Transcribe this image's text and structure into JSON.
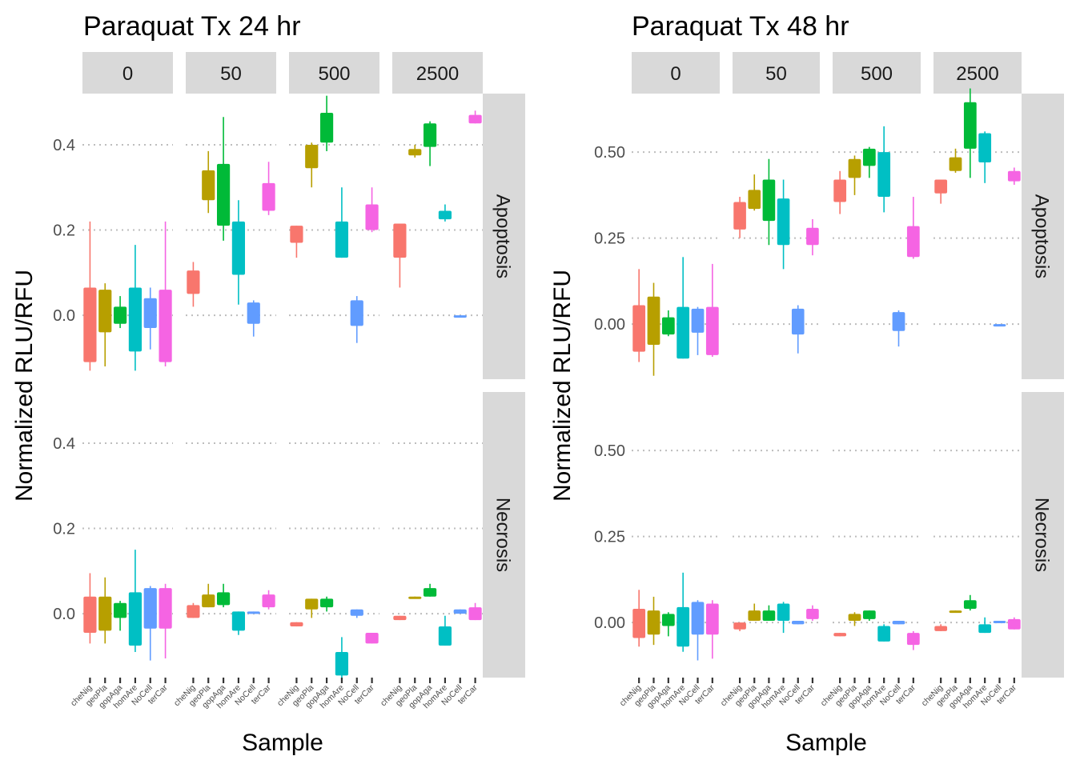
{
  "figure": {
    "ylabel": "Normalized RLU/RFU",
    "xlabel": "Sample",
    "samples": [
      "cheNig",
      "geoPla",
      "gopAga",
      "homAre",
      "NoCell",
      "terCar"
    ],
    "colors": {
      "cheNig": "#F8766D",
      "geoPla": "#B79F00",
      "gopAga": "#00BA38",
      "homAre": "#00BFC4",
      "NoCell": "#619CFF",
      "terCar": "#F564E3"
    },
    "strip_fill": "#D9D9D9",
    "grid_style": "dotted major y gridlines",
    "legend": "none"
  },
  "chart_data": [
    {
      "type": "boxplot",
      "title": "Paraquat Tx 24 hr",
      "facet_cols": [
        "0",
        "50",
        "500",
        "2500"
      ],
      "facet_rows": [
        "Apoptosis",
        "Necrosis"
      ],
      "ylim": [
        -0.15,
        0.52
      ],
      "yticks": [
        0.0,
        0.2,
        0.4
      ],
      "ytick_labels": [
        "0.0",
        "0.2",
        "0.4"
      ],
      "panels": {
        "Apoptosis": {
          "0": [
            {
              "sample": "cheNig",
              "lo": -0.13,
              "q1": -0.11,
              "q3": 0.065,
              "hi": 0.22
            },
            {
              "sample": "geoPla",
              "lo": -0.12,
              "q1": -0.04,
              "q3": 0.06,
              "hi": 0.075
            },
            {
              "sample": "gopAga",
              "lo": -0.03,
              "q1": -0.02,
              "q3": 0.02,
              "hi": 0.045
            },
            {
              "sample": "homAre",
              "lo": -0.13,
              "q1": -0.085,
              "q3": 0.065,
              "hi": 0.165
            },
            {
              "sample": "NoCell",
              "lo": -0.08,
              "q1": -0.03,
              "q3": 0.04,
              "hi": 0.065
            },
            {
              "sample": "terCar",
              "lo": -0.12,
              "q1": -0.11,
              "q3": 0.06,
              "hi": 0.22
            }
          ],
          "50": [
            {
              "sample": "cheNig",
              "lo": 0.02,
              "q1": 0.05,
              "q3": 0.105,
              "hi": 0.125
            },
            {
              "sample": "geoPla",
              "lo": 0.24,
              "q1": 0.27,
              "q3": 0.34,
              "hi": 0.385
            },
            {
              "sample": "gopAga",
              "lo": 0.175,
              "q1": 0.21,
              "q3": 0.355,
              "hi": 0.465
            },
            {
              "sample": "homAre",
              "lo": 0.025,
              "q1": 0.095,
              "q3": 0.22,
              "hi": 0.27
            },
            {
              "sample": "NoCell",
              "lo": -0.05,
              "q1": -0.02,
              "q3": 0.03,
              "hi": 0.035
            },
            {
              "sample": "terCar",
              "lo": 0.235,
              "q1": 0.245,
              "q3": 0.31,
              "hi": 0.36
            }
          ],
          "500": [
            {
              "sample": "cheNig",
              "lo": 0.135,
              "q1": 0.17,
              "q3": 0.21,
              "hi": 0.21
            },
            {
              "sample": "geoPla",
              "lo": 0.3,
              "q1": 0.345,
              "q3": 0.4,
              "hi": 0.405
            },
            {
              "sample": "gopAga",
              "lo": 0.385,
              "q1": 0.405,
              "q3": 0.475,
              "hi": 0.515
            },
            {
              "sample": "homAre",
              "lo": 0.135,
              "q1": 0.135,
              "q3": 0.22,
              "hi": 0.3
            },
            {
              "sample": "NoCell",
              "lo": -0.065,
              "q1": -0.025,
              "q3": 0.035,
              "hi": 0.045
            },
            {
              "sample": "terCar",
              "lo": 0.195,
              "q1": 0.2,
              "q3": 0.26,
              "hi": 0.3
            }
          ],
          "2500": [
            {
              "sample": "cheNig",
              "lo": 0.065,
              "q1": 0.135,
              "q3": 0.215,
              "hi": 0.215
            },
            {
              "sample": "geoPla",
              "lo": 0.37,
              "q1": 0.375,
              "q3": 0.39,
              "hi": 0.4
            },
            {
              "sample": "gopAga",
              "lo": 0.35,
              "q1": 0.395,
              "q3": 0.45,
              "hi": 0.455
            },
            {
              "sample": "homAre",
              "lo": 0.22,
              "q1": 0.225,
              "q3": 0.245,
              "hi": 0.26
            },
            {
              "sample": "NoCell",
              "lo": -0.005,
              "q1": -0.005,
              "q3": 0.0,
              "hi": 0.0
            },
            {
              "sample": "terCar",
              "lo": 0.45,
              "q1": 0.45,
              "q3": 0.47,
              "hi": 0.48
            }
          ]
        },
        "Necrosis": {
          "0": [
            {
              "sample": "cheNig",
              "lo": -0.07,
              "q1": -0.045,
              "q3": 0.04,
              "hi": 0.095
            },
            {
              "sample": "geoPla",
              "lo": -0.07,
              "q1": -0.04,
              "q3": 0.04,
              "hi": 0.085
            },
            {
              "sample": "gopAga",
              "lo": -0.04,
              "q1": -0.01,
              "q3": 0.025,
              "hi": 0.03
            },
            {
              "sample": "homAre",
              "lo": -0.09,
              "q1": -0.075,
              "q3": 0.05,
              "hi": 0.15
            },
            {
              "sample": "NoCell",
              "lo": -0.11,
              "q1": -0.035,
              "q3": 0.06,
              "hi": 0.065
            },
            {
              "sample": "terCar",
              "lo": -0.105,
              "q1": -0.035,
              "q3": 0.06,
              "hi": 0.07
            }
          ],
          "50": [
            {
              "sample": "cheNig",
              "lo": -0.01,
              "q1": -0.01,
              "q3": 0.02,
              "hi": 0.025
            },
            {
              "sample": "geoPla",
              "lo": 0.015,
              "q1": 0.015,
              "q3": 0.045,
              "hi": 0.07
            },
            {
              "sample": "gopAga",
              "lo": 0.015,
              "q1": 0.02,
              "q3": 0.05,
              "hi": 0.07
            },
            {
              "sample": "homAre",
              "lo": -0.05,
              "q1": -0.04,
              "q3": 0.005,
              "hi": 0.005
            },
            {
              "sample": "NoCell",
              "lo": 0.0,
              "q1": 0.0,
              "q3": 0.005,
              "hi": 0.005
            },
            {
              "sample": "terCar",
              "lo": 0.01,
              "q1": 0.015,
              "q3": 0.045,
              "hi": 0.055
            }
          ],
          "500": [
            {
              "sample": "cheNig",
              "lo": -0.03,
              "q1": -0.03,
              "q3": -0.02,
              "hi": -0.02
            },
            {
              "sample": "geoPla",
              "lo": -0.01,
              "q1": 0.01,
              "q3": 0.035,
              "hi": 0.035
            },
            {
              "sample": "gopAga",
              "lo": 0.005,
              "q1": 0.015,
              "q3": 0.035,
              "hi": 0.04
            },
            {
              "sample": "homAre",
              "lo": -0.15,
              "q1": -0.145,
              "q3": -0.09,
              "hi": -0.055
            },
            {
              "sample": "NoCell",
              "lo": -0.01,
              "q1": -0.005,
              "q3": 0.01,
              "hi": 0.01
            },
            {
              "sample": "terCar",
              "lo": -0.07,
              "q1": -0.07,
              "q3": -0.045,
              "hi": -0.045
            }
          ],
          "2500": [
            {
              "sample": "cheNig",
              "lo": -0.015,
              "q1": -0.015,
              "q3": -0.005,
              "hi": -0.005
            },
            {
              "sample": "geoPla",
              "lo": 0.035,
              "q1": 0.035,
              "q3": 0.04,
              "hi": 0.04
            },
            {
              "sample": "gopAga",
              "lo": 0.04,
              "q1": 0.04,
              "q3": 0.06,
              "hi": 0.07
            },
            {
              "sample": "homAre",
              "lo": -0.075,
              "q1": -0.075,
              "q3": -0.03,
              "hi": -0.005
            },
            {
              "sample": "NoCell",
              "lo": 0.0,
              "q1": 0.0,
              "q3": 0.01,
              "hi": 0.01
            },
            {
              "sample": "terCar",
              "lo": -0.015,
              "q1": -0.015,
              "q3": 0.015,
              "hi": 0.025
            }
          ]
        }
      }
    },
    {
      "type": "boxplot",
      "title": "Paraquat Tx 48 hr",
      "facet_cols": [
        "0",
        "50",
        "500",
        "2500"
      ],
      "facet_rows": [
        "Apoptosis",
        "Necrosis"
      ],
      "ylim": [
        -0.16,
        0.67
      ],
      "yticks": [
        0.0,
        0.25,
        0.5
      ],
      "ytick_labels": [
        "0.00",
        "0.25",
        "0.50"
      ],
      "panels": {
        "Apoptosis": {
          "0": [
            {
              "sample": "cheNig",
              "lo": -0.11,
              "q1": -0.08,
              "q3": 0.055,
              "hi": 0.16
            },
            {
              "sample": "geoPla",
              "lo": -0.15,
              "q1": -0.06,
              "q3": 0.08,
              "hi": 0.12
            },
            {
              "sample": "gopAga",
              "lo": -0.035,
              "q1": -0.03,
              "q3": 0.02,
              "hi": 0.04
            },
            {
              "sample": "homAre",
              "lo": -0.1,
              "q1": -0.1,
              "q3": 0.05,
              "hi": 0.195
            },
            {
              "sample": "NoCell",
              "lo": -0.09,
              "q1": -0.025,
              "q3": 0.045,
              "hi": 0.05
            },
            {
              "sample": "terCar",
              "lo": -0.095,
              "q1": -0.09,
              "q3": 0.05,
              "hi": 0.175
            }
          ],
          "50": [
            {
              "sample": "cheNig",
              "lo": 0.25,
              "q1": 0.275,
              "q3": 0.355,
              "hi": 0.37
            },
            {
              "sample": "geoPla",
              "lo": 0.33,
              "q1": 0.335,
              "q3": 0.39,
              "hi": 0.435
            },
            {
              "sample": "gopAga",
              "lo": 0.23,
              "q1": 0.3,
              "q3": 0.42,
              "hi": 0.48
            },
            {
              "sample": "homAre",
              "lo": 0.16,
              "q1": 0.23,
              "q3": 0.365,
              "hi": 0.42
            },
            {
              "sample": "NoCell",
              "lo": -0.085,
              "q1": -0.03,
              "q3": 0.045,
              "hi": 0.055
            },
            {
              "sample": "terCar",
              "lo": 0.2,
              "q1": 0.23,
              "q3": 0.28,
              "hi": 0.305
            }
          ],
          "500": [
            {
              "sample": "cheNig",
              "lo": 0.32,
              "q1": 0.355,
              "q3": 0.42,
              "hi": 0.445
            },
            {
              "sample": "geoPla",
              "lo": 0.375,
              "q1": 0.425,
              "q3": 0.48,
              "hi": 0.49
            },
            {
              "sample": "gopAga",
              "lo": 0.425,
              "q1": 0.46,
              "q3": 0.51,
              "hi": 0.515
            },
            {
              "sample": "homAre",
              "lo": 0.325,
              "q1": 0.37,
              "q3": 0.5,
              "hi": 0.575
            },
            {
              "sample": "NoCell",
              "lo": -0.065,
              "q1": -0.02,
              "q3": 0.035,
              "hi": 0.04
            },
            {
              "sample": "terCar",
              "lo": 0.19,
              "q1": 0.195,
              "q3": 0.285,
              "hi": 0.37
            }
          ],
          "2500": [
            {
              "sample": "cheNig",
              "lo": 0.35,
              "q1": 0.38,
              "q3": 0.42,
              "hi": 0.42
            },
            {
              "sample": "geoPla",
              "lo": 0.44,
              "q1": 0.445,
              "q3": 0.485,
              "hi": 0.51
            },
            {
              "sample": "gopAga",
              "lo": 0.425,
              "q1": 0.51,
              "q3": 0.645,
              "hi": 0.685
            },
            {
              "sample": "homAre",
              "lo": 0.41,
              "q1": 0.47,
              "q3": 0.555,
              "hi": 0.56
            },
            {
              "sample": "NoCell",
              "lo": -0.005,
              "q1": -0.005,
              "q3": 0.0,
              "hi": 0.0
            },
            {
              "sample": "terCar",
              "lo": 0.405,
              "q1": 0.415,
              "q3": 0.445,
              "hi": 0.455
            }
          ]
        },
        "Necrosis": {
          "0": [
            {
              "sample": "cheNig",
              "lo": -0.07,
              "q1": -0.045,
              "q3": 0.04,
              "hi": 0.095
            },
            {
              "sample": "geoPla",
              "lo": -0.065,
              "q1": -0.035,
              "q3": 0.035,
              "hi": 0.075
            },
            {
              "sample": "gopAga",
              "lo": -0.04,
              "q1": -0.01,
              "q3": 0.025,
              "hi": 0.03
            },
            {
              "sample": "homAre",
              "lo": -0.085,
              "q1": -0.07,
              "q3": 0.045,
              "hi": 0.145
            },
            {
              "sample": "NoCell",
              "lo": -0.11,
              "q1": -0.035,
              "q3": 0.06,
              "hi": 0.065
            },
            {
              "sample": "terCar",
              "lo": -0.105,
              "q1": -0.035,
              "q3": 0.055,
              "hi": 0.065
            }
          ],
          "50": [
            {
              "sample": "cheNig",
              "lo": -0.025,
              "q1": -0.02,
              "q3": 0.0,
              "hi": 0.0
            },
            {
              "sample": "geoPla",
              "lo": 0.005,
              "q1": 0.005,
              "q3": 0.035,
              "hi": 0.055
            },
            {
              "sample": "gopAga",
              "lo": 0.005,
              "q1": 0.005,
              "q3": 0.035,
              "hi": 0.05
            },
            {
              "sample": "homAre",
              "lo": -0.03,
              "q1": 0.005,
              "q3": 0.055,
              "hi": 0.06
            },
            {
              "sample": "NoCell",
              "lo": -0.005,
              "q1": -0.005,
              "q3": 0.005,
              "hi": 0.005
            },
            {
              "sample": "terCar",
              "lo": 0.005,
              "q1": 0.01,
              "q3": 0.04,
              "hi": 0.05
            }
          ],
          "500": [
            {
              "sample": "cheNig",
              "lo": -0.04,
              "q1": -0.04,
              "q3": -0.03,
              "hi": -0.03
            },
            {
              "sample": "geoPla",
              "lo": -0.01,
              "q1": 0.005,
              "q3": 0.025,
              "hi": 0.03
            },
            {
              "sample": "gopAga",
              "lo": 0.005,
              "q1": 0.01,
              "q3": 0.035,
              "hi": 0.035
            },
            {
              "sample": "homAre",
              "lo": -0.055,
              "q1": -0.055,
              "q3": -0.01,
              "hi": -0.005
            },
            {
              "sample": "NoCell",
              "lo": -0.005,
              "q1": -0.005,
              "q3": 0.005,
              "hi": 0.005
            },
            {
              "sample": "terCar",
              "lo": -0.08,
              "q1": -0.065,
              "q3": -0.03,
              "hi": -0.025
            }
          ],
          "2500": [
            {
              "sample": "cheNig",
              "lo": -0.025,
              "q1": -0.025,
              "q3": -0.01,
              "hi": -0.005
            },
            {
              "sample": "geoPla",
              "lo": 0.03,
              "q1": 0.03,
              "q3": 0.035,
              "hi": 0.035
            },
            {
              "sample": "gopAga",
              "lo": 0.035,
              "q1": 0.04,
              "q3": 0.065,
              "hi": 0.08
            },
            {
              "sample": "homAre",
              "lo": -0.03,
              "q1": -0.03,
              "q3": -0.005,
              "hi": 0.015
            },
            {
              "sample": "NoCell",
              "lo": 0.0,
              "q1": 0.0,
              "q3": 0.005,
              "hi": 0.005
            },
            {
              "sample": "terCar",
              "lo": -0.02,
              "q1": -0.02,
              "q3": 0.01,
              "hi": 0.015
            }
          ]
        }
      }
    }
  ]
}
